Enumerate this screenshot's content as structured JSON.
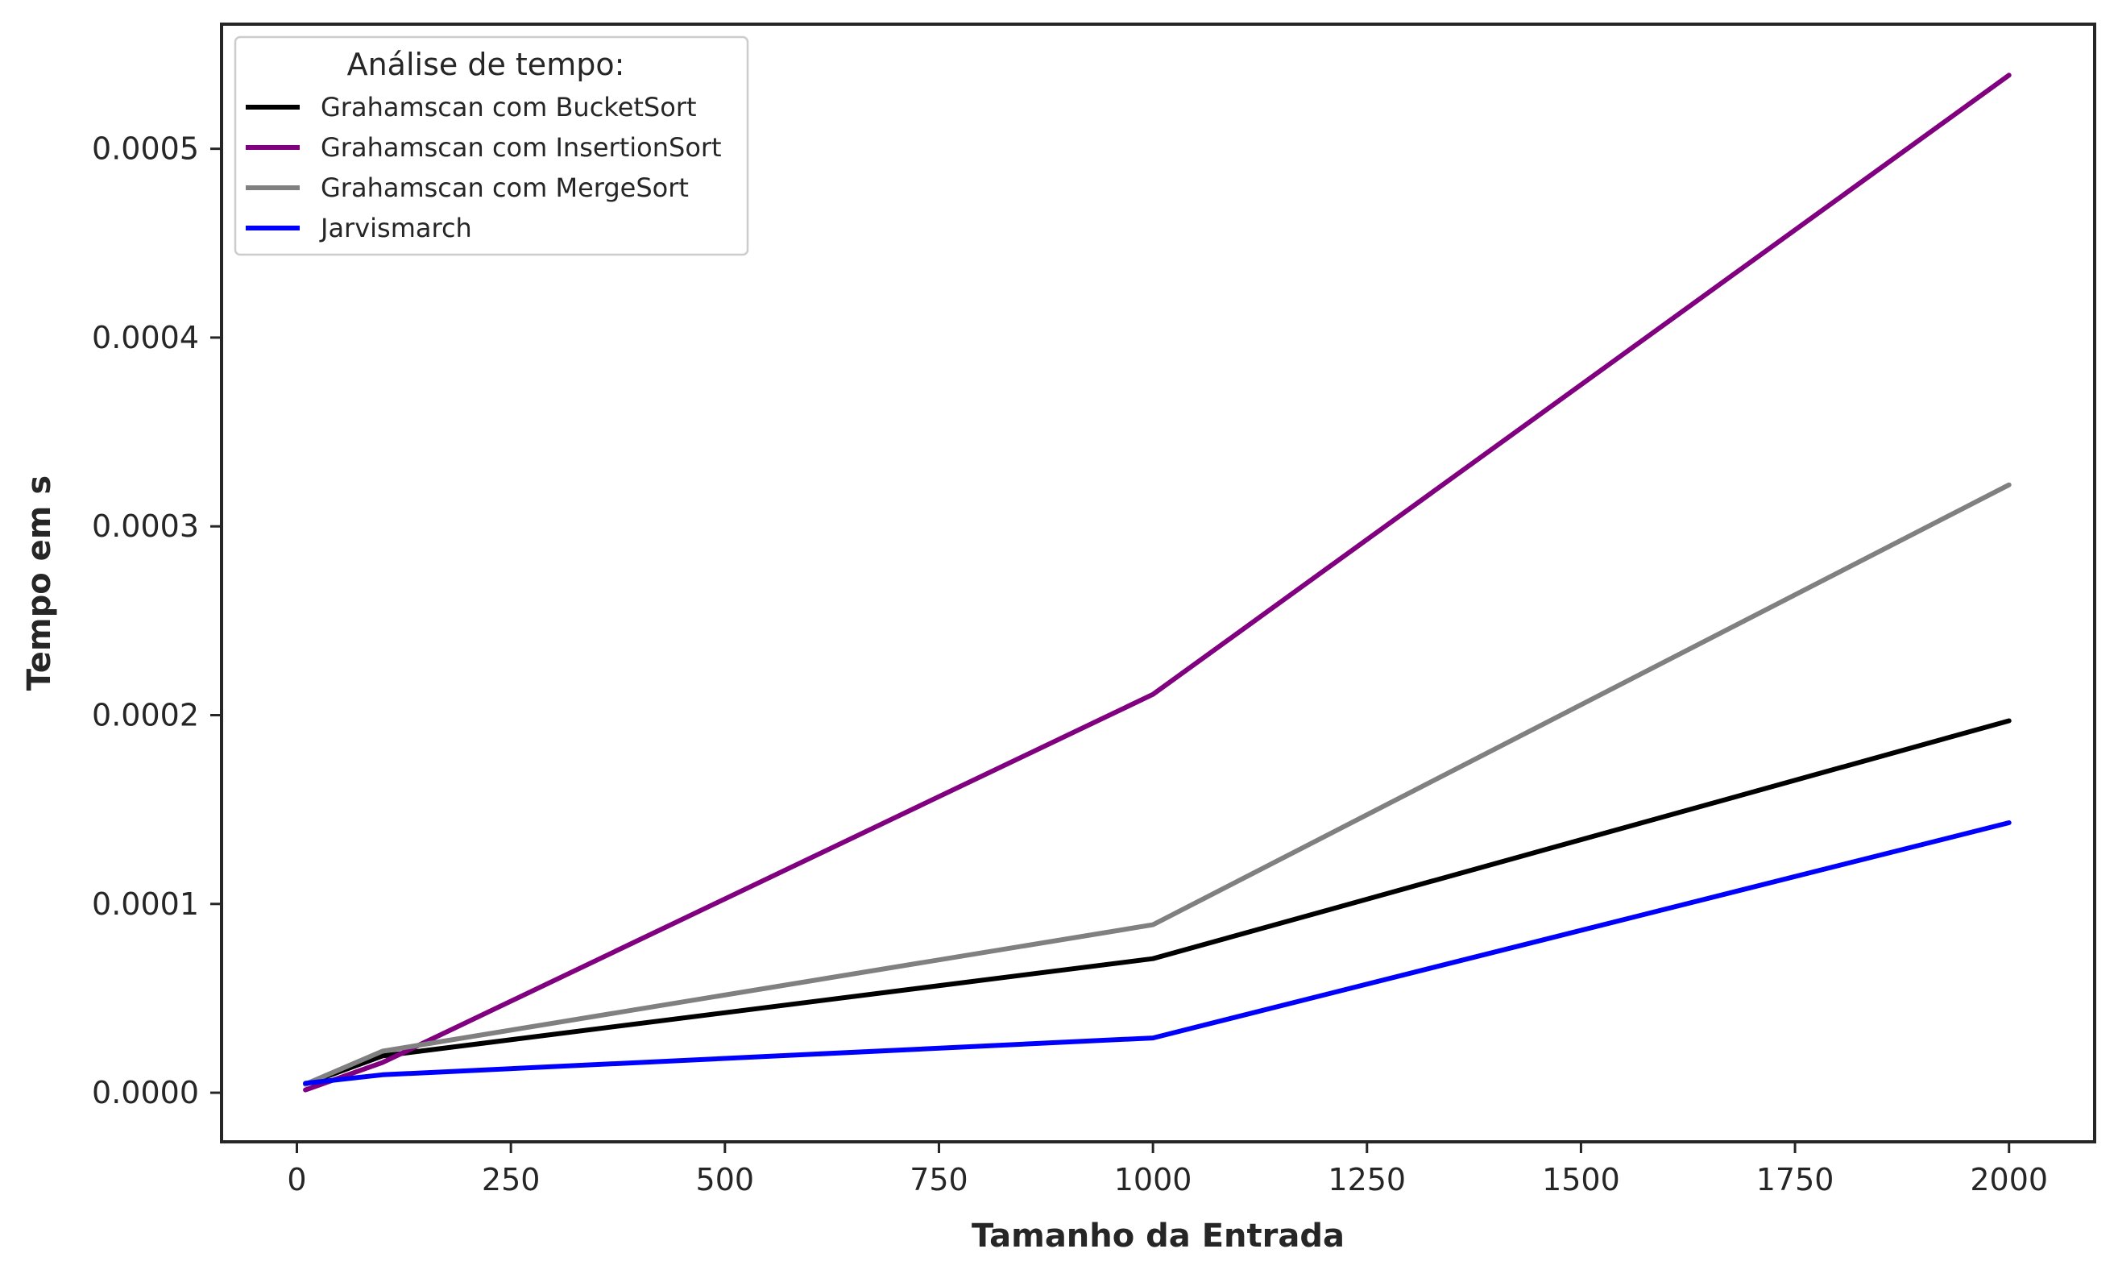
{
  "chart_data": {
    "type": "line",
    "title": "",
    "xlabel": "Tamanho da Entrada",
    "ylabel": "Tempo em s",
    "xlim": [
      -88,
      2100
    ],
    "ylim": [
      -2.6e-05,
      0.000566
    ],
    "xticks": [
      0,
      250,
      500,
      750,
      1000,
      1250,
      1500,
      1750,
      2000
    ],
    "xtick_labels": [
      "0",
      "250",
      "500",
      "750",
      "1000",
      "1250",
      "1500",
      "1750",
      "2000"
    ],
    "yticks": [
      0.0,
      0.0001,
      0.0002,
      0.0003,
      0.0004,
      0.0005
    ],
    "ytick_labels": [
      "0.0000",
      "0.0001",
      "0.0002",
      "0.0003",
      "0.0004",
      "0.0005"
    ],
    "grid": false,
    "legend": {
      "title": "Análise de tempo:",
      "position": "top-left"
    },
    "x": [
      10,
      100,
      1000,
      2000
    ],
    "series": [
      {
        "name": "Grahamscan com BucketSort",
        "color": "#000000",
        "values": [
          4.5e-06,
          1.95e-05,
          7.1e-05,
          0.000197
        ]
      },
      {
        "name": "Grahamscan com InsertionSort",
        "color": "#800080",
        "values": [
          1.5e-06,
          1.6e-05,
          0.000211,
          0.000539
        ]
      },
      {
        "name": "Grahamscan com MergeSort",
        "color": "#808080",
        "values": [
          4.5e-06,
          2.2e-05,
          8.9e-05,
          0.000322
        ]
      },
      {
        "name": "Jarvismarch",
        "color": "#0000ff",
        "values": [
          5e-06,
          9.5e-06,
          2.9e-05,
          0.000143
        ]
      }
    ]
  }
}
